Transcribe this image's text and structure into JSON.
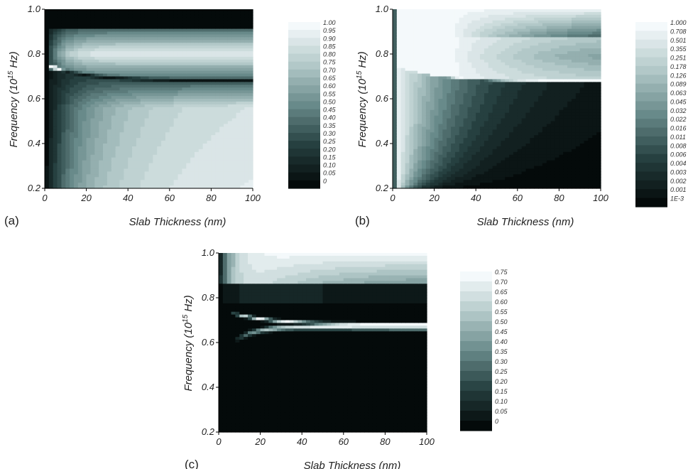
{
  "chart_data": [
    {
      "type": "heatmap",
      "panel_label": "(a)",
      "xlabel": "Slab Thickness (nm)",
      "ylabel": "Frequency (10^15 Hz)",
      "xlim": [
        0,
        100
      ],
      "ylim": [
        0.2,
        1.0
      ],
      "x_ticks": [
        "0",
        "20",
        "40",
        "60",
        "80",
        "100"
      ],
      "y_ticks": [
        "0.2",
        "0.4",
        "0.6",
        "0.8",
        "1.0"
      ],
      "colorbar_labels": [
        "1.00",
        "0.95",
        "0.90",
        "0.85",
        "0.80",
        "0.75",
        "0.70",
        "0.65",
        "0.60",
        "0.55",
        "0.50",
        "0.45",
        "0.40",
        "0.35",
        "0.30",
        "0.25",
        "0.20",
        "0.15",
        "0.10",
        "0.05",
        "0"
      ]
    },
    {
      "type": "heatmap",
      "panel_label": "(b)",
      "xlabel": "Slab Thickness (nm)",
      "ylabel": "Frequency (10^15 Hz)",
      "xlim": [
        0,
        100
      ],
      "ylim": [
        0.2,
        1.0
      ],
      "x_ticks": [
        "0",
        "20",
        "40",
        "60",
        "80",
        "100"
      ],
      "y_ticks": [
        "0.2",
        "0.4",
        "0.6",
        "0.8",
        "1.0"
      ],
      "scale": "log",
      "colorbar_labels": [
        "1.000",
        "0.708",
        "0.501",
        "0.355",
        "0.251",
        "0.178",
        "0.126",
        "0.089",
        "0.063",
        "0.045",
        "0.032",
        "0.022",
        "0.016",
        "0.011",
        "0.008",
        "0.006",
        "0.004",
        "0.003",
        "0.002",
        "0.001",
        "1E-3"
      ]
    },
    {
      "type": "heatmap",
      "panel_label": "(c)",
      "xlabel": "Slab Thickness (nm)",
      "ylabel": "Frequency (10^15 Hz)",
      "xlim": [
        0,
        100
      ],
      "ylim": [
        0.2,
        1.0
      ],
      "x_ticks": [
        "0",
        "20",
        "40",
        "60",
        "80",
        "100"
      ],
      "y_ticks": [
        "0.2",
        "0.4",
        "0.6",
        "0.8",
        "1.0"
      ],
      "colorbar_labels": [
        "0.75",
        "0.70",
        "0.65",
        "0.60",
        "0.55",
        "0.50",
        "0.45",
        "0.40",
        "0.35",
        "0.30",
        "0.25",
        "0.20",
        "0.15",
        "0.10",
        "0.05",
        "0"
      ]
    }
  ]
}
